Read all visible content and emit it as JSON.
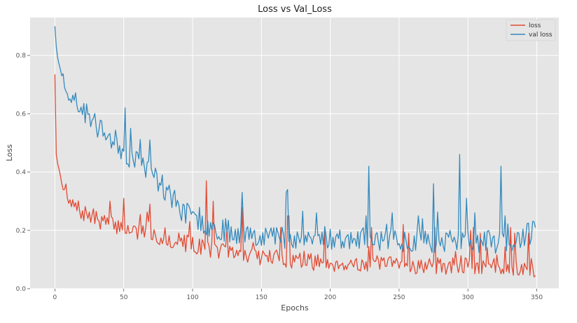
{
  "chart_data": {
    "type": "line",
    "title": "Loss vs Val_Loss",
    "xlabel": "Epochs",
    "ylabel": "Loss",
    "xlim": [
      -18,
      366
    ],
    "ylim": [
      0.0,
      0.93
    ],
    "x_ticks": [
      0,
      50,
      100,
      150,
      200,
      250,
      300,
      350
    ],
    "x_tick_labels": [
      "0",
      "50",
      "100",
      "150",
      "200",
      "250",
      "300",
      "350"
    ],
    "y_ticks": [
      0.0,
      0.2,
      0.4,
      0.6,
      0.8
    ],
    "y_tick_labels": [
      "0.0",
      "0.2",
      "0.4",
      "0.6",
      "0.8"
    ],
    "grid": true,
    "legend_position": "top-right",
    "colors": {
      "background": "#e5e5e5",
      "grid": "#ffffff"
    },
    "series": [
      {
        "name": "loss",
        "color": "#e24a33",
        "keypoints": [
          [
            0,
            0.735
          ],
          [
            1,
            0.46
          ],
          [
            3,
            0.41
          ],
          [
            5,
            0.36
          ],
          [
            8,
            0.33
          ],
          [
            10,
            0.29
          ],
          [
            15,
            0.28
          ],
          [
            20,
            0.26
          ],
          [
            30,
            0.24
          ],
          [
            40,
            0.22
          ],
          [
            50,
            0.21
          ],
          [
            60,
            0.195
          ],
          [
            70,
            0.185
          ],
          [
            80,
            0.17
          ],
          [
            90,
            0.16
          ],
          [
            100,
            0.15
          ],
          [
            110,
            0.14
          ],
          [
            120,
            0.13
          ],
          [
            130,
            0.12
          ],
          [
            140,
            0.115
          ],
          [
            150,
            0.11
          ],
          [
            160,
            0.105
          ],
          [
            170,
            0.1
          ],
          [
            180,
            0.095
          ],
          [
            190,
            0.09
          ],
          [
            200,
            0.088
          ],
          [
            220,
            0.085
          ],
          [
            240,
            0.082
          ],
          [
            260,
            0.08
          ],
          [
            280,
            0.078
          ],
          [
            300,
            0.076
          ],
          [
            320,
            0.075
          ],
          [
            340,
            0.074
          ],
          [
            349,
            0.073
          ]
        ],
        "noise": 0.03,
        "start_noise": 8,
        "seed": 7,
        "spikes": [
          [
            40,
            0.3
          ],
          [
            50,
            0.31
          ],
          [
            68,
            0.23
          ],
          [
            69,
            0.29
          ],
          [
            110,
            0.37
          ],
          [
            115,
            0.3
          ],
          [
            136,
            0.28
          ],
          [
            164,
            0.21
          ],
          [
            169,
            0.25
          ],
          [
            170,
            0.25
          ],
          [
            196,
            0.2
          ],
          [
            230,
            0.21
          ],
          [
            253,
            0.22
          ],
          [
            257,
            0.19
          ],
          [
            276,
            0.21
          ],
          [
            302,
            0.2
          ],
          [
            304,
            0.21
          ],
          [
            309,
            0.19
          ],
          [
            331,
            0.21
          ],
          [
            334,
            0.19
          ],
          [
            344,
            0.19
          ],
          [
            348,
            0.04
          ],
          [
            349,
            0.045
          ]
        ]
      },
      {
        "name": "val loss",
        "color": "#348abd",
        "keypoints": [
          [
            0,
            0.9
          ],
          [
            1,
            0.83
          ],
          [
            3,
            0.77
          ],
          [
            5,
            0.73
          ],
          [
            8,
            0.7
          ],
          [
            12,
            0.66
          ],
          [
            18,
            0.62
          ],
          [
            25,
            0.59
          ],
          [
            30,
            0.56
          ],
          [
            35,
            0.53
          ],
          [
            40,
            0.52
          ],
          [
            45,
            0.5
          ],
          [
            50,
            0.47
          ],
          [
            55,
            0.45
          ],
          [
            60,
            0.44
          ],
          [
            65,
            0.42
          ],
          [
            70,
            0.4
          ],
          [
            75,
            0.37
          ],
          [
            80,
            0.34
          ],
          [
            85,
            0.31
          ],
          [
            90,
            0.28
          ],
          [
            95,
            0.26
          ],
          [
            100,
            0.24
          ],
          [
            105,
            0.23
          ],
          [
            110,
            0.22
          ],
          [
            115,
            0.21
          ],
          [
            120,
            0.205
          ],
          [
            130,
            0.195
          ],
          [
            140,
            0.19
          ],
          [
            150,
            0.185
          ],
          [
            160,
            0.18
          ],
          [
            180,
            0.175
          ],
          [
            200,
            0.17
          ],
          [
            220,
            0.17
          ],
          [
            240,
            0.168
          ],
          [
            260,
            0.165
          ],
          [
            280,
            0.163
          ],
          [
            300,
            0.162
          ],
          [
            320,
            0.16
          ],
          [
            340,
            0.165
          ],
          [
            349,
            0.21
          ]
        ],
        "noise": 0.04,
        "start_noise": 6,
        "seed": 23,
        "spikes": [
          [
            51,
            0.62
          ],
          [
            55,
            0.55
          ],
          [
            69,
            0.51
          ],
          [
            78,
            0.39
          ],
          [
            136,
            0.33
          ],
          [
            168,
            0.33
          ],
          [
            169,
            0.34
          ],
          [
            190,
            0.26
          ],
          [
            226,
            0.25
          ],
          [
            228,
            0.42
          ],
          [
            245,
            0.26
          ],
          [
            264,
            0.25
          ],
          [
            267,
            0.24
          ],
          [
            275,
            0.36
          ],
          [
            294,
            0.46
          ],
          [
            299,
            0.31
          ],
          [
            305,
            0.26
          ],
          [
            324,
            0.42
          ],
          [
            327,
            0.25
          ],
          [
            349,
            0.21
          ]
        ]
      }
    ]
  }
}
